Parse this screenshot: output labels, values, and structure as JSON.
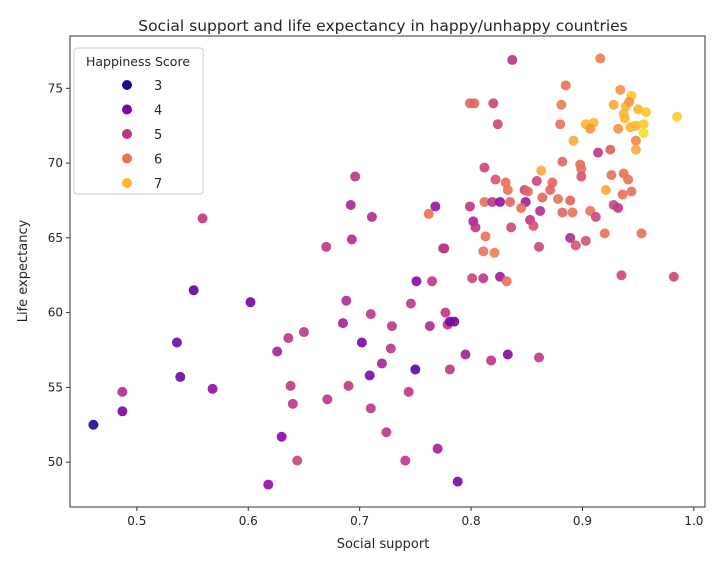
{
  "chart_data": {
    "type": "scatter",
    "title": "Social support and life expectancy in happy/unhappy countries",
    "xlabel": "Social support",
    "ylabel": "Life expectancy",
    "xlim": [
      0.44,
      1.01
    ],
    "ylim": [
      47,
      78.5
    ],
    "xticks": [
      0.5,
      0.6,
      0.7,
      0.8,
      0.9,
      1.0
    ],
    "xtick_labels": [
      "0.5",
      "0.6",
      "0.7",
      "0.8",
      "0.9",
      "1.0"
    ],
    "yticks": [
      50,
      55,
      60,
      65,
      70,
      75
    ],
    "ytick_labels": [
      "50",
      "55",
      "60",
      "65",
      "70",
      "75"
    ],
    "grid": false,
    "colormap": "plasma",
    "color_range": [
      2.8,
      7.8
    ],
    "legend": {
      "title": "Happiness Score",
      "placement": "top-left",
      "entries": [
        {
          "label": "3",
          "value": 3
        },
        {
          "label": "4",
          "value": 4
        },
        {
          "label": "5",
          "value": 5
        },
        {
          "label": "6",
          "value": 6
        },
        {
          "label": "7",
          "value": 7
        }
      ]
    },
    "point_fields": [
      "social_support",
      "life_expectancy",
      "happiness_score"
    ],
    "points": [
      [
        0.461,
        52.5,
        3.0
      ],
      [
        0.487,
        54.7,
        4.8
      ],
      [
        0.487,
        53.4,
        4.0
      ],
      [
        0.536,
        58.0,
        3.8
      ],
      [
        0.539,
        55.7,
        3.8
      ],
      [
        0.551,
        61.5,
        3.6
      ],
      [
        0.559,
        66.3,
        5.0
      ],
      [
        0.568,
        54.9,
        4.3
      ],
      [
        0.602,
        60.7,
        3.9
      ],
      [
        0.626,
        57.4,
        4.6
      ],
      [
        0.63,
        51.7,
        4.2
      ],
      [
        0.618,
        48.5,
        4.3
      ],
      [
        0.636,
        58.3,
        5.0
      ],
      [
        0.638,
        55.1,
        5.0
      ],
      [
        0.64,
        53.9,
        5.0
      ],
      [
        0.644,
        50.1,
        5.2
      ],
      [
        0.65,
        58.7,
        5.0
      ],
      [
        0.67,
        64.4,
        5.0
      ],
      [
        0.671,
        54.2,
        5.0
      ],
      [
        0.685,
        59.3,
        4.6
      ],
      [
        0.688,
        60.8,
        4.8
      ],
      [
        0.69,
        55.1,
        5.0
      ],
      [
        0.692,
        67.2,
        4.7
      ],
      [
        0.693,
        64.9,
        4.8
      ],
      [
        0.696,
        69.1,
        5.0
      ],
      [
        0.702,
        58.0,
        4.0
      ],
      [
        0.709,
        55.8,
        4.1
      ],
      [
        0.71,
        53.6,
        5.0
      ],
      [
        0.71,
        59.9,
        5.0
      ],
      [
        0.711,
        66.4,
        4.8
      ],
      [
        0.72,
        56.6,
        4.7
      ],
      [
        0.724,
        52.0,
        5.0
      ],
      [
        0.728,
        57.6,
        5.0
      ],
      [
        0.729,
        59.1,
        5.0
      ],
      [
        0.741,
        50.1,
        5.0
      ],
      [
        0.744,
        54.7,
        5.0
      ],
      [
        0.746,
        60.6,
        5.0
      ],
      [
        0.75,
        56.2,
        3.6
      ],
      [
        0.751,
        62.1,
        4.2
      ],
      [
        0.762,
        66.6,
        6.0
      ],
      [
        0.763,
        59.1,
        4.8
      ],
      [
        0.765,
        62.1,
        5.0
      ],
      [
        0.768,
        67.1,
        4.4
      ],
      [
        0.77,
        50.9,
        4.6
      ],
      [
        0.775,
        64.3,
        5.0
      ],
      [
        0.777,
        60.0,
        5.0
      ],
      [
        0.779,
        59.2,
        5.0
      ],
      [
        0.781,
        56.2,
        5.0
      ],
      [
        0.781,
        59.4,
        4.0
      ],
      [
        0.785,
        59.4,
        4.0
      ],
      [
        0.788,
        48.7,
        4.0
      ],
      [
        0.795,
        57.2,
        4.6
      ],
      [
        0.818,
        56.8,
        5.0
      ],
      [
        0.833,
        57.2,
        4.1
      ],
      [
        0.861,
        57.0,
        5.0
      ],
      [
        0.982,
        62.4,
        5.3
      ],
      [
        0.801,
        62.3,
        5.3
      ],
      [
        0.811,
        62.3,
        5.0
      ],
      [
        0.826,
        62.4,
        4.5
      ],
      [
        0.832,
        62.1,
        6.0
      ],
      [
        0.935,
        62.5,
        5.3
      ],
      [
        0.837,
        76.9,
        5.0
      ],
      [
        0.916,
        77.0,
        6.2
      ],
      [
        0.885,
        75.2,
        6.0
      ],
      [
        0.934,
        74.9,
        6.5
      ],
      [
        0.944,
        74.5,
        7.2
      ],
      [
        0.799,
        74.0,
        5.8
      ],
      [
        0.803,
        74.0,
        5.8
      ],
      [
        0.82,
        74.0,
        5.3
      ],
      [
        0.881,
        73.9,
        6.2
      ],
      [
        0.928,
        73.9,
        6.8
      ],
      [
        0.939,
        73.8,
        7.0
      ],
      [
        0.942,
        74.1,
        6.5
      ],
      [
        0.95,
        73.6,
        7.0
      ],
      [
        0.957,
        73.4,
        7.2
      ],
      [
        0.937,
        73.3,
        7.0
      ],
      [
        0.938,
        73.0,
        7.0
      ],
      [
        0.985,
        73.1,
        7.3
      ],
      [
        0.824,
        72.6,
        5.3
      ],
      [
        0.88,
        72.6,
        6.0
      ],
      [
        0.903,
        72.6,
        7.0
      ],
      [
        0.91,
        72.7,
        7.0
      ],
      [
        0.907,
        72.3,
        6.5
      ],
      [
        0.932,
        72.3,
        6.5
      ],
      [
        0.943,
        72.4,
        7.0
      ],
      [
        0.948,
        72.5,
        7.0
      ],
      [
        0.955,
        72.6,
        7.2
      ],
      [
        0.955,
        72.0,
        7.5
      ],
      [
        0.892,
        71.5,
        6.8
      ],
      [
        0.948,
        71.5,
        6.3
      ],
      [
        0.948,
        70.9,
        6.8
      ],
      [
        0.914,
        70.7,
        5.0
      ],
      [
        0.925,
        70.9,
        5.7
      ],
      [
        0.882,
        70.1,
        5.8
      ],
      [
        0.898,
        69.9,
        6.0
      ],
      [
        0.899,
        69.6,
        6.0
      ],
      [
        0.863,
        69.5,
        6.8
      ],
      [
        0.812,
        69.7,
        5.3
      ],
      [
        0.899,
        69.1,
        5.5
      ],
      [
        0.926,
        69.2,
        6.0
      ],
      [
        0.937,
        69.3,
        6.0
      ],
      [
        0.941,
        68.9,
        6.0
      ],
      [
        0.822,
        68.9,
        5.5
      ],
      [
        0.831,
        68.7,
        6.0
      ],
      [
        0.859,
        68.8,
        5.3
      ],
      [
        0.873,
        68.7,
        5.8
      ],
      [
        0.921,
        68.2,
        6.8
      ],
      [
        0.944,
        68.1,
        6.0
      ],
      [
        0.936,
        67.9,
        6.0
      ],
      [
        0.833,
        68.2,
        6.0
      ],
      [
        0.848,
        68.2,
        5.3
      ],
      [
        0.851,
        68.1,
        5.8
      ],
      [
        0.871,
        68.2,
        5.8
      ],
      [
        0.864,
        67.7,
        5.8
      ],
      [
        0.878,
        67.6,
        6.0
      ],
      [
        0.889,
        67.5,
        5.8
      ],
      [
        0.799,
        67.1,
        5.0
      ],
      [
        0.812,
        67.4,
        6.0
      ],
      [
        0.819,
        67.4,
        5.0
      ],
      [
        0.826,
        67.4,
        4.3
      ],
      [
        0.835,
        67.4,
        5.8
      ],
      [
        0.849,
        67.4,
        4.5
      ],
      [
        0.845,
        67.0,
        6.0
      ],
      [
        0.862,
        66.8,
        4.8
      ],
      [
        0.882,
        66.7,
        5.8
      ],
      [
        0.891,
        66.7,
        6.0
      ],
      [
        0.907,
        66.8,
        6.0
      ],
      [
        0.912,
        66.4,
        5.3
      ],
      [
        0.928,
        67.2,
        5.3
      ],
      [
        0.932,
        67.0,
        5.0
      ],
      [
        0.802,
        66.1,
        4.7
      ],
      [
        0.804,
        65.7,
        5.0
      ],
      [
        0.813,
        65.1,
        6.0
      ],
      [
        0.836,
        65.7,
        5.3
      ],
      [
        0.853,
        66.2,
        5.0
      ],
      [
        0.856,
        65.8,
        5.5
      ],
      [
        0.889,
        65.0,
        4.8
      ],
      [
        0.894,
        64.5,
        5.5
      ],
      [
        0.903,
        64.8,
        5.5
      ],
      [
        0.92,
        65.3,
        6.0
      ],
      [
        0.953,
        65.3,
        6.0
      ],
      [
        0.811,
        64.1,
        6.0
      ],
      [
        0.821,
        64.0,
        6.2
      ],
      [
        0.861,
        64.4,
        5.3
      ],
      [
        0.776,
        64.3,
        5.0
      ]
    ]
  }
}
